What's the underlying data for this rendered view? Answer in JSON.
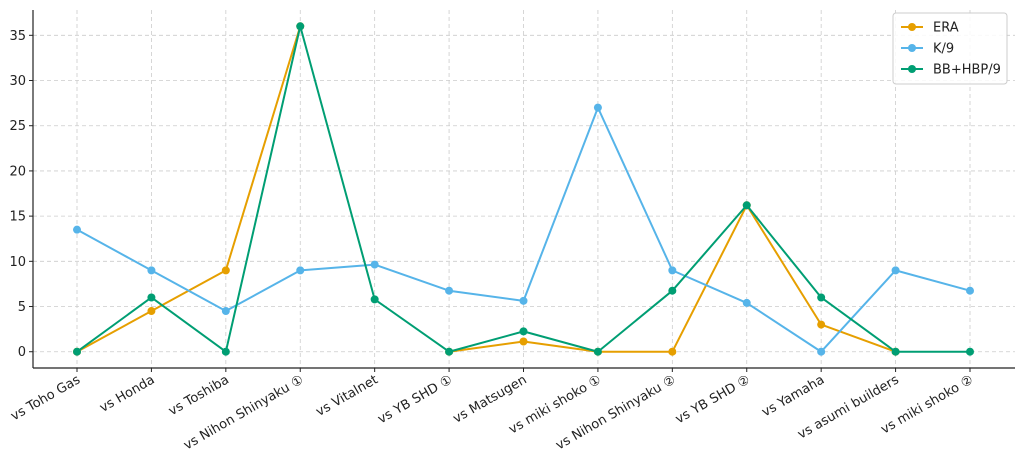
{
  "chart_data": {
    "type": "line",
    "title": "",
    "xlabel": "",
    "ylabel": "",
    "categories": [
      "vs Toho Gas",
      "vs Honda",
      "vs Toshiba",
      "vs Nihon Shinyaku ①",
      "vs Vitalnet",
      "vs YB SHD ①",
      "vs Matsugen",
      "vs miki shoko ①",
      "vs Nihon Shinyaku ②",
      "vs YB SHD ②",
      "vs Yamaha",
      "vs asumi builders",
      "vs miki shoko ②"
    ],
    "series": [
      {
        "name": "ERA",
        "color": "#E69F00",
        "values": [
          0,
          4.5,
          9,
          36,
          null,
          0,
          1.13,
          0,
          0,
          16.2,
          3,
          0,
          null
        ]
      },
      {
        "name": "K/9",
        "color": "#56B4E9",
        "values": [
          13.5,
          9,
          4.5,
          9,
          9.64,
          6.75,
          5.63,
          27,
          9,
          5.4,
          0,
          9,
          6.75
        ]
      },
      {
        "name": "BB+HBP/9",
        "color": "#009E73",
        "values": [
          0,
          6,
          0,
          36,
          5.79,
          0,
          2.25,
          0,
          6.75,
          16.2,
          6,
          0,
          0
        ]
      }
    ],
    "ylim": [
      -1.8,
      37.8
    ],
    "yticks": [
      0,
      5,
      10,
      15,
      20,
      25,
      30,
      35
    ],
    "grid": true,
    "legend_position": "top-right"
  }
}
